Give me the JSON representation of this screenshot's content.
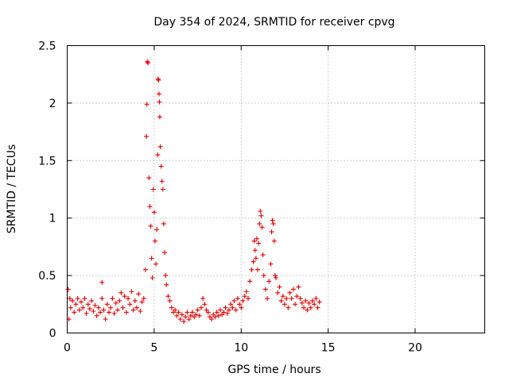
{
  "chart_data": {
    "type": "scatter",
    "title": "Day 354 of 2024, SRMTID for receiver cpvg",
    "xlabel": "GPS time / hours",
    "ylabel": "SRMTID / TECUs",
    "xlim": [
      0,
      24
    ],
    "ylim": [
      0,
      2.5
    ],
    "xticks": [
      0,
      5,
      10,
      15,
      20
    ],
    "xtick_labels": [
      "0",
      "5",
      "10",
      "15",
      "20"
    ],
    "yticks": [
      0,
      0.5,
      1,
      1.5,
      2,
      2.5
    ],
    "ytick_labels": [
      "0",
      "0.5",
      "1",
      "1.5",
      "2",
      "2.5"
    ],
    "grid": true,
    "marker": "plus",
    "series": [
      {
        "name": "SRMTID",
        "color": "#e00000",
        "points": [
          [
            0.05,
            0.38
          ],
          [
            0.1,
            0.12
          ],
          [
            0.15,
            0.3
          ],
          [
            0.2,
            0.22
          ],
          [
            0.3,
            0.28
          ],
          [
            0.4,
            0.18
          ],
          [
            0.5,
            0.25
          ],
          [
            0.6,
            0.3
          ],
          [
            0.7,
            0.2
          ],
          [
            0.8,
            0.27
          ],
          [
            0.9,
            0.22
          ],
          [
            1.0,
            0.3
          ],
          [
            1.1,
            0.17
          ],
          [
            1.2,
            0.25
          ],
          [
            1.3,
            0.21
          ],
          [
            1.4,
            0.28
          ],
          [
            1.5,
            0.19
          ],
          [
            1.6,
            0.24
          ],
          [
            1.7,
            0.15
          ],
          [
            1.8,
            0.22
          ],
          [
            1.9,
            0.18
          ],
          [
            2.0,
            0.3
          ],
          [
            2.0,
            0.44
          ],
          [
            2.1,
            0.2
          ],
          [
            2.2,
            0.12
          ],
          [
            2.3,
            0.25
          ],
          [
            2.4,
            0.18
          ],
          [
            2.5,
            0.22
          ],
          [
            2.6,
            0.3
          ],
          [
            2.7,
            0.17
          ],
          [
            2.8,
            0.26
          ],
          [
            2.9,
            0.2
          ],
          [
            3.0,
            0.28
          ],
          [
            3.1,
            0.35
          ],
          [
            3.2,
            0.22
          ],
          [
            3.3,
            0.32
          ],
          [
            3.4,
            0.18
          ],
          [
            3.5,
            0.3
          ],
          [
            3.6,
            0.25
          ],
          [
            3.7,
            0.36
          ],
          [
            3.8,
            0.2
          ],
          [
            3.9,
            0.28
          ],
          [
            4.0,
            0.22
          ],
          [
            4.1,
            0.34
          ],
          [
            4.2,
            0.19
          ],
          [
            4.3,
            0.27
          ],
          [
            4.4,
            0.3
          ],
          [
            4.5,
            0.55
          ],
          [
            4.55,
            1.71
          ],
          [
            4.58,
            1.99
          ],
          [
            4.6,
            2.36
          ],
          [
            4.65,
            2.35
          ],
          [
            4.7,
            1.35
          ],
          [
            4.75,
            1.1
          ],
          [
            4.8,
            0.93
          ],
          [
            4.85,
            0.65
          ],
          [
            4.9,
            0.48
          ],
          [
            4.95,
            1.25
          ],
          [
            5.0,
            1.05
          ],
          [
            5.05,
            0.8
          ],
          [
            5.1,
            0.6
          ],
          [
            5.15,
            0.9
          ],
          [
            5.2,
            1.55
          ],
          [
            5.22,
            2.21
          ],
          [
            5.25,
            2.2
          ],
          [
            5.28,
            2.08
          ],
          [
            5.3,
            2.01
          ],
          [
            5.32,
            1.88
          ],
          [
            5.35,
            1.62
          ],
          [
            5.4,
            1.45
          ],
          [
            5.45,
            1.32
          ],
          [
            5.5,
            1.25
          ],
          [
            5.55,
            0.95
          ],
          [
            5.6,
            0.7
          ],
          [
            5.65,
            0.5
          ],
          [
            5.7,
            0.42
          ],
          [
            5.8,
            0.32
          ],
          [
            5.9,
            0.28
          ],
          [
            6.0,
            0.22
          ],
          [
            6.1,
            0.18
          ],
          [
            6.2,
            0.2
          ],
          [
            6.3,
            0.15
          ],
          [
            6.4,
            0.18
          ],
          [
            6.5,
            0.12
          ],
          [
            6.6,
            0.16
          ],
          [
            6.7,
            0.1
          ],
          [
            6.8,
            0.14
          ],
          [
            6.9,
            0.18
          ],
          [
            7.0,
            0.12
          ],
          [
            7.1,
            0.15
          ],
          [
            7.2,
            0.18
          ],
          [
            7.3,
            0.14
          ],
          [
            7.4,
            0.16
          ],
          [
            7.5,
            0.2
          ],
          [
            7.6,
            0.15
          ],
          [
            7.7,
            0.22
          ],
          [
            7.8,
            0.3
          ],
          [
            7.9,
            0.25
          ],
          [
            8.0,
            0.2
          ],
          [
            8.1,
            0.18
          ],
          [
            8.2,
            0.14
          ],
          [
            8.3,
            0.12
          ],
          [
            8.4,
            0.16
          ],
          [
            8.5,
            0.14
          ],
          [
            8.6,
            0.18
          ],
          [
            8.7,
            0.15
          ],
          [
            8.8,
            0.2
          ],
          [
            8.9,
            0.16
          ],
          [
            9.0,
            0.18
          ],
          [
            9.1,
            0.22
          ],
          [
            9.2,
            0.17
          ],
          [
            9.3,
            0.2
          ],
          [
            9.4,
            0.25
          ],
          [
            9.5,
            0.22
          ],
          [
            9.6,
            0.28
          ],
          [
            9.7,
            0.2
          ],
          [
            9.8,
            0.3
          ],
          [
            9.9,
            0.25
          ],
          [
            10.0,
            0.22
          ],
          [
            10.1,
            0.28
          ],
          [
            10.2,
            0.32
          ],
          [
            10.3,
            0.36
          ],
          [
            10.4,
            0.3
          ],
          [
            10.5,
            0.45
          ],
          [
            10.6,
            0.55
          ],
          [
            10.7,
            0.62
          ],
          [
            10.75,
            0.8
          ],
          [
            10.8,
            0.72
          ],
          [
            10.85,
            0.65
          ],
          [
            10.9,
            0.82
          ],
          [
            10.95,
            0.55
          ],
          [
            11.0,
            0.78
          ],
          [
            11.05,
            0.95
          ],
          [
            11.1,
            1.06
          ],
          [
            11.15,
            1.02
          ],
          [
            11.2,
            0.92
          ],
          [
            11.25,
            0.68
          ],
          [
            11.3,
            0.5
          ],
          [
            11.4,
            0.38
          ],
          [
            11.5,
            0.3
          ],
          [
            11.6,
            0.45
          ],
          [
            11.7,
            0.6
          ],
          [
            11.75,
            0.88
          ],
          [
            11.8,
            0.98
          ],
          [
            11.85,
            0.95
          ],
          [
            11.9,
            0.8
          ],
          [
            11.95,
            0.5
          ],
          [
            12.0,
            0.48
          ],
          [
            12.1,
            0.35
          ],
          [
            12.2,
            0.4
          ],
          [
            12.3,
            0.28
          ],
          [
            12.4,
            0.32
          ],
          [
            12.5,
            0.25
          ],
          [
            12.6,
            0.3
          ],
          [
            12.7,
            0.22
          ],
          [
            12.8,
            0.35
          ],
          [
            12.9,
            0.3
          ],
          [
            13.0,
            0.38
          ],
          [
            13.1,
            0.25
          ],
          [
            13.2,
            0.32
          ],
          [
            13.3,
            0.4
          ],
          [
            13.4,
            0.3
          ],
          [
            13.5,
            0.26
          ],
          [
            13.6,
            0.22
          ],
          [
            13.7,
            0.28
          ],
          [
            13.8,
            0.2
          ],
          [
            13.9,
            0.26
          ],
          [
            14.0,
            0.22
          ],
          [
            14.1,
            0.28
          ],
          [
            14.2,
            0.25
          ],
          [
            14.3,
            0.3
          ],
          [
            14.4,
            0.22
          ],
          [
            14.5,
            0.27
          ]
        ]
      }
    ]
  }
}
